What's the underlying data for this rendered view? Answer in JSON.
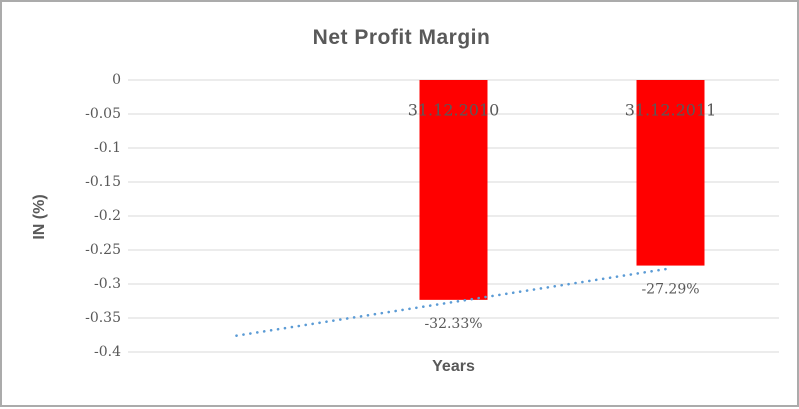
{
  "chart_data": {
    "type": "bar",
    "title": "Net Profit Margin",
    "xlabel": "Years",
    "ylabel": "IN (%)",
    "categories": [
      "",
      "31.12.2010",
      "31.12.2011"
    ],
    "values": [
      null,
      -0.3233,
      -0.2729
    ],
    "data_labels": [
      null,
      "-32.33%",
      "-27.29%"
    ],
    "yticks": [
      {
        "value": 0,
        "label": "0"
      },
      {
        "value": -0.05,
        "label": "-0.05"
      },
      {
        "value": -0.1,
        "label": "-0.1"
      },
      {
        "value": -0.15,
        "label": "-0.15"
      },
      {
        "value": -0.2,
        "label": "-0.2"
      },
      {
        "value": -0.25,
        "label": "-0.25"
      },
      {
        "value": -0.3,
        "label": "-0.3"
      },
      {
        "value": -0.35,
        "label": "-0.35"
      },
      {
        "value": -0.4,
        "label": "-0.4"
      }
    ],
    "ylim": [
      -0.4,
      0
    ],
    "grid": true,
    "legend": "none",
    "trendline": {
      "type": "linear",
      "line_style": "dotted",
      "start_category_index": 0,
      "end_category_index": 2,
      "start_value": -0.376,
      "end_value": -0.277
    },
    "colors": {
      "bar": "#FF0000",
      "trendline": "#5B9BD5",
      "gridline": "#D9D9D9",
      "text": "#595959",
      "frame_border": "#ABABAB",
      "background": "#FFFFFF"
    }
  }
}
